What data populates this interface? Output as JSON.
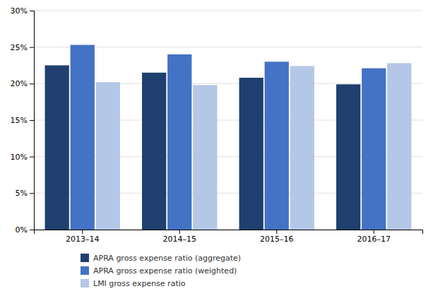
{
  "chart_data": {
    "type": "bar",
    "categories": [
      "2013–14",
      "2014–15",
      "2015–16",
      "2016–17"
    ],
    "series": [
      {
        "name": "APRA gross expense ratio (aggregate)",
        "color": "#1f3f6e",
        "values": [
          0.225,
          0.215,
          0.208,
          0.199
        ]
      },
      {
        "name": "APRA gross expense ratio (weighted)",
        "color": "#4472c4",
        "values": [
          0.253,
          0.24,
          0.23,
          0.221
        ]
      },
      {
        "name": "LMI gross expense ratio",
        "color": "#b4c7e7",
        "values": [
          0.202,
          0.198,
          0.224,
          0.228
        ]
      }
    ],
    "ylim": [
      0,
      0.3
    ],
    "yticks": [
      {
        "value": 0,
        "label": "0%"
      },
      {
        "value": 0.05,
        "label": "5%"
      },
      {
        "value": 0.1,
        "label": "10%"
      },
      {
        "value": 0.15,
        "label": "15%"
      },
      {
        "value": 0.2,
        "label": "20%"
      },
      {
        "value": 0.25,
        "label": "25%"
      },
      {
        "value": 0.3,
        "label": "30%"
      }
    ],
    "grid": true,
    "legend": "bottom"
  }
}
